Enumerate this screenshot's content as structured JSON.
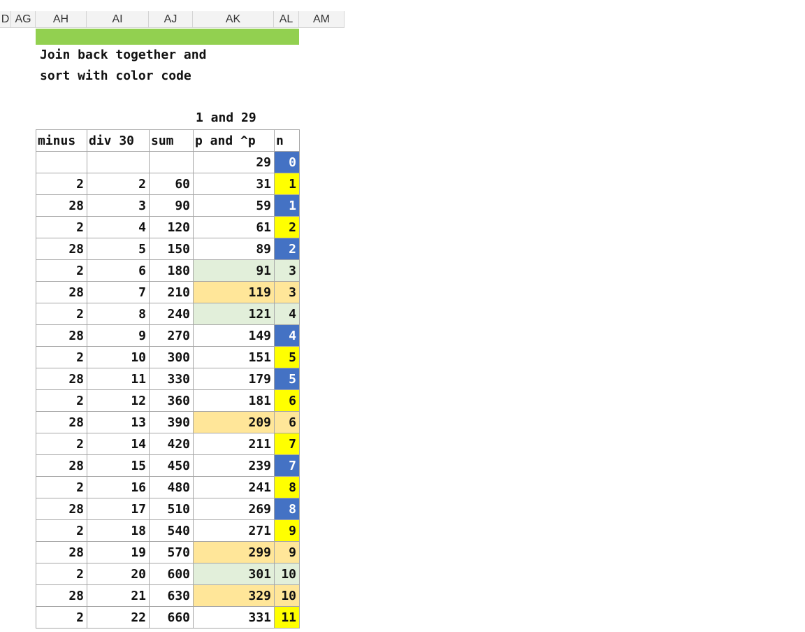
{
  "columns": [
    "D",
    "AG",
    "AH",
    "AI",
    "AJ",
    "AK",
    "AL",
    "AM"
  ],
  "note_line1": "Join back together and",
  "note_line2": "sort with color code",
  "subheader": "1 and 29",
  "headers": [
    "minus",
    "div 30",
    "sum",
    "p and ^p",
    "n"
  ],
  "colors": {
    "green_bar": "#92d050",
    "light_green": "#e2efda",
    "orange": "#ffe699",
    "yellow": "#ffff00",
    "blue": "#4472c4"
  },
  "rows": [
    {
      "minus": "",
      "div": "",
      "sum": "",
      "p": "29",
      "n": "0",
      "p_fill": "",
      "n_fill": "blue"
    },
    {
      "minus": "2",
      "div": "2",
      "sum": "60",
      "p": "31",
      "n": "1",
      "p_fill": "",
      "n_fill": "yellow"
    },
    {
      "minus": "28",
      "div": "3",
      "sum": "90",
      "p": "59",
      "n": "1",
      "p_fill": "",
      "n_fill": "blue"
    },
    {
      "minus": "2",
      "div": "4",
      "sum": "120",
      "p": "61",
      "n": "2",
      "p_fill": "",
      "n_fill": "yellow"
    },
    {
      "minus": "28",
      "div": "5",
      "sum": "150",
      "p": "89",
      "n": "2",
      "p_fill": "",
      "n_fill": "blue"
    },
    {
      "minus": "2",
      "div": "6",
      "sum": "180",
      "p": "91",
      "n": "3",
      "p_fill": "green",
      "n_fill": "green"
    },
    {
      "minus": "28",
      "div": "7",
      "sum": "210",
      "p": "119",
      "n": "3",
      "p_fill": "orange",
      "n_fill": "orange"
    },
    {
      "minus": "2",
      "div": "8",
      "sum": "240",
      "p": "121",
      "n": "4",
      "p_fill": "green",
      "n_fill": "green"
    },
    {
      "minus": "28",
      "div": "9",
      "sum": "270",
      "p": "149",
      "n": "4",
      "p_fill": "",
      "n_fill": "blue"
    },
    {
      "minus": "2",
      "div": "10",
      "sum": "300",
      "p": "151",
      "n": "5",
      "p_fill": "",
      "n_fill": "yellow"
    },
    {
      "minus": "28",
      "div": "11",
      "sum": "330",
      "p": "179",
      "n": "5",
      "p_fill": "",
      "n_fill": "blue"
    },
    {
      "minus": "2",
      "div": "12",
      "sum": "360",
      "p": "181",
      "n": "6",
      "p_fill": "",
      "n_fill": "yellow"
    },
    {
      "minus": "28",
      "div": "13",
      "sum": "390",
      "p": "209",
      "n": "6",
      "p_fill": "orange",
      "n_fill": "orange"
    },
    {
      "minus": "2",
      "div": "14",
      "sum": "420",
      "p": "211",
      "n": "7",
      "p_fill": "",
      "n_fill": "yellow"
    },
    {
      "minus": "28",
      "div": "15",
      "sum": "450",
      "p": "239",
      "n": "7",
      "p_fill": "",
      "n_fill": "blue"
    },
    {
      "minus": "2",
      "div": "16",
      "sum": "480",
      "p": "241",
      "n": "8",
      "p_fill": "",
      "n_fill": "yellow"
    },
    {
      "minus": "28",
      "div": "17",
      "sum": "510",
      "p": "269",
      "n": "8",
      "p_fill": "",
      "n_fill": "blue"
    },
    {
      "minus": "2",
      "div": "18",
      "sum": "540",
      "p": "271",
      "n": "9",
      "p_fill": "",
      "n_fill": "yellow"
    },
    {
      "minus": "28",
      "div": "19",
      "sum": "570",
      "p": "299",
      "n": "9",
      "p_fill": "orange",
      "n_fill": "orange"
    },
    {
      "minus": "2",
      "div": "20",
      "sum": "600",
      "p": "301",
      "n": "10",
      "p_fill": "green",
      "n_fill": "green"
    },
    {
      "minus": "28",
      "div": "21",
      "sum": "630",
      "p": "329",
      "n": "10",
      "p_fill": "orange",
      "n_fill": "orange"
    },
    {
      "minus": "2",
      "div": "22",
      "sum": "660",
      "p": "331",
      "n": "11",
      "p_fill": "",
      "n_fill": "yellow"
    }
  ]
}
